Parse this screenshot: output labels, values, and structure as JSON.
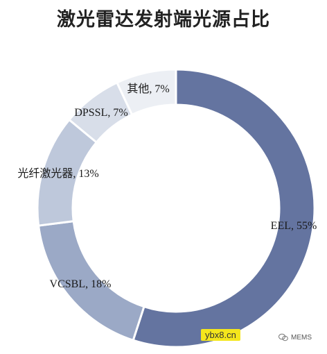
{
  "chart_data": {
    "type": "pie",
    "title": "激光雷达发射端光源占比",
    "slices": [
      {
        "label": "EEL",
        "value": 55,
        "display": "EEL, 55%",
        "color": "#6474a0"
      },
      {
        "label": "VCSBL",
        "value": 18,
        "display": "VCSBL, 18%",
        "color": "#9ba9c6"
      },
      {
        "label": "光纤激光器",
        "value": 13,
        "display": "光纤激光器, 13%",
        "color": "#bec8db"
      },
      {
        "label": "DPSSL",
        "value": 7,
        "display": "DPSSL, 7%",
        "color": "#d8dee9"
      },
      {
        "label": "其他",
        "value": 7,
        "display": "其他, 7%",
        "color": "#eceff4"
      }
    ],
    "donut": true,
    "legend": "none"
  },
  "watermark": "ybx8.cn",
  "brand": "MEMS"
}
